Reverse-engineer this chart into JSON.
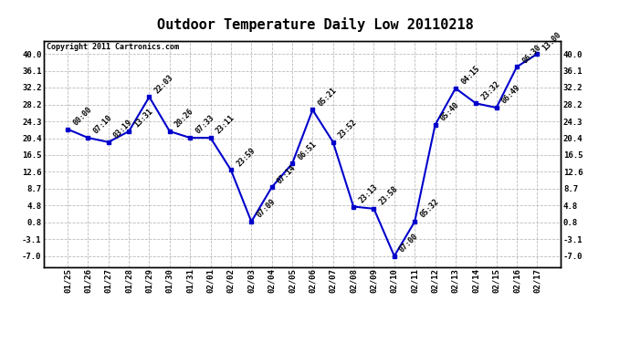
{
  "title": "Outdoor Temperature Daily Low 20110218",
  "copyright": "Copyright 2011 Cartronics.com",
  "x_labels": [
    "01/25",
    "01/26",
    "01/27",
    "01/28",
    "01/29",
    "01/30",
    "01/31",
    "02/01",
    "02/02",
    "02/03",
    "02/04",
    "02/05",
    "02/06",
    "02/07",
    "02/08",
    "02/09",
    "02/10",
    "02/11",
    "02/12",
    "02/13",
    "02/14",
    "02/15",
    "02/16",
    "02/17"
  ],
  "y_values": [
    22.5,
    20.5,
    19.5,
    22.0,
    30.0,
    22.0,
    20.5,
    20.5,
    13.0,
    1.0,
    9.0,
    14.5,
    27.0,
    19.5,
    4.5,
    4.0,
    -7.0,
    1.0,
    23.5,
    32.0,
    28.5,
    27.5,
    37.0,
    40.0
  ],
  "point_labels": [
    "00:00",
    "07:10",
    "03:19",
    "13:31",
    "22:03",
    "20:26",
    "07:33",
    "23:11",
    "23:59",
    "07:09",
    "07:14",
    "06:51",
    "05:21",
    "23:52",
    "23:13",
    "23:58",
    "07:00",
    "05:32",
    "05:40",
    "04:15",
    "23:32",
    "06:49",
    "06:30",
    "13:00"
  ],
  "y_ticks": [
    -7.0,
    -3.1,
    0.8,
    4.8,
    8.7,
    12.6,
    16.5,
    20.4,
    24.3,
    28.2,
    32.2,
    36.1,
    40.0
  ],
  "ylim": [
    -9.5,
    43.0
  ],
  "line_color": "#0000cc",
  "marker_color": "#0000cc",
  "bg_color": "#ffffff",
  "grid_color": "#bbbbbb",
  "title_fontsize": 11,
  "label_fontsize": 6,
  "copyright_fontsize": 6,
  "tick_fontsize": 6.5
}
